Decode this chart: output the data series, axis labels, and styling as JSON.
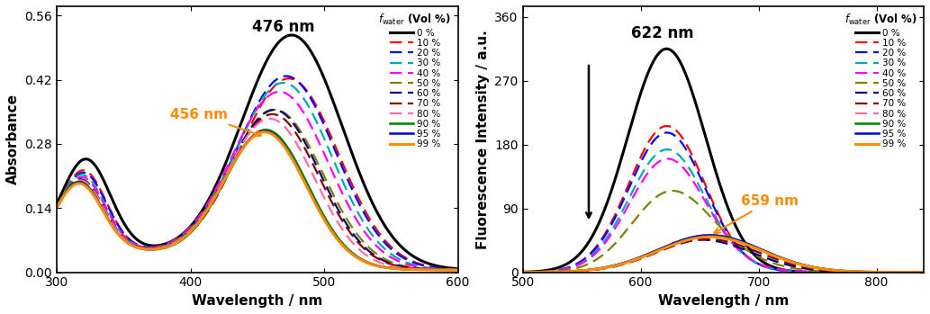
{
  "abs_xlim": [
    300,
    600
  ],
  "abs_ylim": [
    0.0,
    0.58
  ],
  "abs_yticks": [
    0.0,
    0.14,
    0.28,
    0.42,
    0.56
  ],
  "abs_xticks": [
    300,
    400,
    500,
    600
  ],
  "abs_xlabel": "Wavelength / nm",
  "abs_ylabel": "Absorbance",
  "fl_xlim": [
    500,
    840
  ],
  "fl_ylim": [
    0,
    375
  ],
  "fl_yticks": [
    0,
    90,
    180,
    270,
    360
  ],
  "fl_xticks": [
    500,
    600,
    700,
    800
  ],
  "fl_xlabel": "Wavelength / nm",
  "fl_ylabel": "Fluorescence Intensity / a.u.",
  "fractions": [
    "0 %",
    "10 %",
    "20 %",
    "30 %",
    "40 %",
    "50 %",
    "60 %",
    "70 %",
    "80 %",
    "90 %",
    "95 %",
    "99 %"
  ],
  "colors": [
    "#000000",
    "#ff0000",
    "#0000ff",
    "#00aaaa",
    "#ff00ff",
    "#808000",
    "#000080",
    "#800000",
    "#ff69b4",
    "#008000",
    "#0000cd",
    "#ff8c00"
  ],
  "linestyles": [
    "solid",
    "dashed",
    "dashed",
    "dashed",
    "dashed",
    "dashed",
    "dashed",
    "dashed",
    "dashed",
    "solid",
    "solid",
    "solid"
  ],
  "linewidths": [
    2.2,
    1.6,
    1.6,
    1.6,
    1.6,
    1.6,
    1.6,
    1.6,
    1.6,
    1.8,
    1.8,
    2.2
  ],
  "abs_params": [
    {
      "p1_amp": 0.19,
      "p1_cen": 322,
      "p1_sig": 18,
      "p2_amp": 0.505,
      "p2_cen": 476,
      "p2_sig": 38
    },
    {
      "p1_amp": 0.165,
      "p1_cen": 320,
      "p1_sig": 17,
      "p2_amp": 0.41,
      "p2_cen": 474,
      "p2_sig": 37
    },
    {
      "p1_amp": 0.16,
      "p1_cen": 320,
      "p1_sig": 17,
      "p2_amp": 0.415,
      "p2_cen": 472,
      "p2_sig": 37
    },
    {
      "p1_amp": 0.155,
      "p1_cen": 319,
      "p1_sig": 17,
      "p2_amp": 0.4,
      "p2_cen": 470,
      "p2_sig": 36
    },
    {
      "p1_amp": 0.15,
      "p1_cen": 319,
      "p1_sig": 17,
      "p2_amp": 0.38,
      "p2_cen": 467,
      "p2_sig": 36
    },
    {
      "p1_amp": 0.145,
      "p1_cen": 318,
      "p1_sig": 17,
      "p2_amp": 0.34,
      "p2_cen": 464,
      "p2_sig": 35
    },
    {
      "p1_amp": 0.145,
      "p1_cen": 318,
      "p1_sig": 17,
      "p2_amp": 0.34,
      "p2_cen": 463,
      "p2_sig": 34
    },
    {
      "p1_amp": 0.144,
      "p1_cen": 318,
      "p1_sig": 17,
      "p2_amp": 0.33,
      "p2_cen": 462,
      "p2_sig": 34
    },
    {
      "p1_amp": 0.143,
      "p1_cen": 318,
      "p1_sig": 17,
      "p2_amp": 0.32,
      "p2_cen": 460,
      "p2_sig": 33
    },
    {
      "p1_amp": 0.14,
      "p1_cen": 317,
      "p1_sig": 17,
      "p2_amp": 0.295,
      "p2_cen": 457,
      "p2_sig": 31
    },
    {
      "p1_amp": 0.138,
      "p1_cen": 317,
      "p1_sig": 17,
      "p2_amp": 0.292,
      "p2_cen": 456,
      "p2_sig": 31
    },
    {
      "p1_amp": 0.136,
      "p1_cen": 317,
      "p1_sig": 17,
      "p2_amp": 0.29,
      "p2_cen": 456,
      "p2_sig": 31
    }
  ],
  "fl_params": [
    {
      "p1_amp": 315,
      "p1_cen": 622,
      "p1_sig": 33,
      "p2_amp": 0,
      "p2_cen": 659,
      "p2_sig": 38
    },
    {
      "p1_amp": 205,
      "p1_cen": 622,
      "p1_sig": 32,
      "p2_amp": 2,
      "p2_cen": 659,
      "p2_sig": 38
    },
    {
      "p1_amp": 195,
      "p1_cen": 622,
      "p1_sig": 32,
      "p2_amp": 3,
      "p2_cen": 659,
      "p2_sig": 38
    },
    {
      "p1_amp": 170,
      "p1_cen": 622,
      "p1_sig": 32,
      "p2_amp": 5,
      "p2_cen": 659,
      "p2_sig": 38
    },
    {
      "p1_amp": 155,
      "p1_cen": 622,
      "p1_sig": 32,
      "p2_amp": 8,
      "p2_cen": 659,
      "p2_sig": 38
    },
    {
      "p1_amp": 95,
      "p1_cen": 622,
      "p1_sig": 32,
      "p2_amp": 30,
      "p2_cen": 659,
      "p2_sig": 38
    },
    {
      "p1_amp": 10,
      "p1_cen": 622,
      "p1_sig": 32,
      "p2_amp": 40,
      "p2_cen": 659,
      "p2_sig": 40
    },
    {
      "p1_amp": 3,
      "p1_cen": 622,
      "p1_sig": 32,
      "p2_amp": 45,
      "p2_cen": 659,
      "p2_sig": 42
    },
    {
      "p1_amp": 1,
      "p1_cen": 622,
      "p1_sig": 32,
      "p2_amp": 50,
      "p2_cen": 659,
      "p2_sig": 43
    },
    {
      "p1_amp": 0.5,
      "p1_cen": 622,
      "p1_sig": 32,
      "p2_amp": 52,
      "p2_cen": 659,
      "p2_sig": 44
    },
    {
      "p1_amp": 0.3,
      "p1_cen": 622,
      "p1_sig": 32,
      "p2_amp": 52,
      "p2_cen": 659,
      "p2_sig": 44
    },
    {
      "p1_amp": 0.2,
      "p1_cen": 622,
      "p1_sig": 32,
      "p2_amp": 50,
      "p2_cen": 659,
      "p2_sig": 44
    }
  ]
}
